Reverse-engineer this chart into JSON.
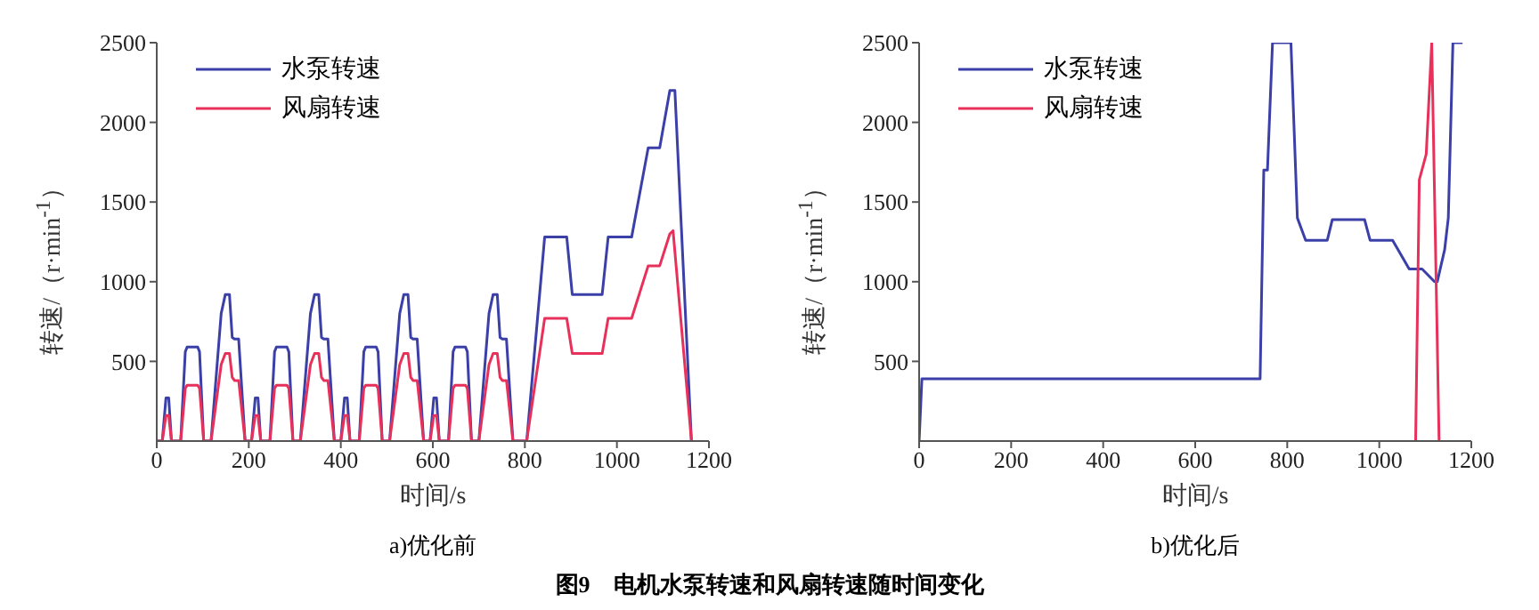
{
  "chart_data": [
    {
      "type": "line",
      "title": "a)优化前",
      "xlabel": "时间/s",
      "ylabel": "转速/（r·min$^{-1}$）",
      "xlim": [
        0,
        1200
      ],
      "xticks": [
        0,
        200,
        400,
        600,
        800,
        1000,
        1200
      ],
      "ylim": [
        0,
        2500
      ],
      "yticks": [
        500,
        1000,
        1500,
        2000,
        2500
      ],
      "grid": false,
      "legend": "top left",
      "marker": "none",
      "line_style": "solid",
      "annotations": [
        "图9　电机水泵转速和风扇转速随时间变化"
      ],
      "series": [
        {
          "name": "水泵转速",
          "color": "#3b3fa8",
          "x": [
            0,
            12,
            20,
            26,
            32,
            52,
            62,
            66,
            89,
            93,
            102,
            118,
            140,
            149,
            158,
            164,
            169,
            178,
            192,
            206,
            214,
            220,
            226,
            246,
            256,
            260,
            283,
            287,
            296,
            312,
            334,
            343,
            352,
            358,
            363,
            372,
            386,
            400,
            408,
            414,
            420,
            440,
            450,
            454,
            477,
            481,
            490,
            506,
            528,
            537,
            546,
            552,
            557,
            566,
            580,
            594,
            602,
            608,
            614,
            634,
            644,
            648,
            671,
            675,
            684,
            700,
            722,
            731,
            740,
            746,
            751,
            760,
            774,
            804,
            843,
            891,
            903,
            968,
            981,
            1032,
            1068,
            1093,
            1115,
            1126,
            1162
          ],
          "values": [
            0,
            0,
            270,
            270,
            0,
            0,
            560,
            590,
            590,
            560,
            0,
            0,
            800,
            920,
            920,
            650,
            640,
            640,
            0,
            0,
            270,
            270,
            0,
            0,
            560,
            590,
            590,
            560,
            0,
            0,
            800,
            920,
            920,
            650,
            640,
            640,
            0,
            0,
            270,
            270,
            0,
            0,
            560,
            590,
            590,
            560,
            0,
            0,
            800,
            920,
            920,
            650,
            640,
            640,
            0,
            0,
            270,
            270,
            0,
            0,
            560,
            590,
            590,
            560,
            0,
            0,
            800,
            920,
            920,
            650,
            640,
            640,
            0,
            0,
            1280,
            1280,
            920,
            920,
            1280,
            1280,
            1840,
            1840,
            2200,
            2200,
            0
          ]
        },
        {
          "name": "风扇转速",
          "color": "#e8315a",
          "x": [
            0,
            12,
            20,
            26,
            32,
            52,
            62,
            66,
            89,
            93,
            102,
            118,
            140,
            149,
            158,
            164,
            169,
            178,
            192,
            206,
            214,
            220,
            226,
            246,
            256,
            260,
            283,
            287,
            296,
            312,
            334,
            343,
            352,
            358,
            363,
            372,
            386,
            400,
            408,
            414,
            420,
            440,
            450,
            454,
            477,
            481,
            490,
            506,
            528,
            537,
            546,
            552,
            557,
            566,
            580,
            594,
            602,
            608,
            614,
            634,
            644,
            648,
            671,
            675,
            684,
            700,
            722,
            731,
            740,
            746,
            751,
            760,
            774,
            804,
            843,
            891,
            903,
            968,
            981,
            1032,
            1068,
            1093,
            1115,
            1122,
            1162
          ],
          "values": [
            0,
            0,
            160,
            160,
            0,
            0,
            330,
            350,
            350,
            330,
            0,
            0,
            480,
            550,
            550,
            400,
            380,
            380,
            0,
            0,
            160,
            160,
            0,
            0,
            330,
            350,
            350,
            330,
            0,
            0,
            480,
            550,
            550,
            400,
            380,
            380,
            0,
            0,
            160,
            160,
            0,
            0,
            330,
            350,
            350,
            330,
            0,
            0,
            480,
            550,
            550,
            400,
            380,
            380,
            0,
            0,
            160,
            160,
            0,
            0,
            330,
            350,
            350,
            330,
            0,
            0,
            480,
            550,
            550,
            400,
            380,
            380,
            0,
            0,
            770,
            770,
            550,
            550,
            770,
            770,
            1100,
            1100,
            1300,
            1320,
            0
          ]
        }
      ]
    },
    {
      "type": "line",
      "title": "b)优化后",
      "xlabel": "时间/s",
      "ylabel": "转速/（r·min$^{-1}$）",
      "xlim": [
        0,
        1200
      ],
      "xticks": [
        0,
        200,
        400,
        600,
        800,
        1000,
        1200
      ],
      "ylim": [
        0,
        2500
      ],
      "yticks": [
        500,
        1000,
        1500,
        2000,
        2500
      ],
      "grid": false,
      "legend": "top left",
      "marker": "none",
      "line_style": "solid",
      "series": [
        {
          "name": "水泵转速",
          "color": "#3b3fa8",
          "x": [
            0,
            6,
            741,
            749,
            757,
            768,
            808,
            822,
            840,
            887,
            898,
            968,
            980,
            1029,
            1065,
            1093,
            1120,
            1126,
            1142,
            1150,
            1160,
            1181
          ],
          "values": [
            0,
            390,
            390,
            1700,
            1700,
            2500,
            2500,
            1400,
            1260,
            1260,
            1390,
            1390,
            1260,
            1260,
            1080,
            1080,
            1000,
            1000,
            1200,
            1400,
            2500,
            2500
          ]
        },
        {
          "name": "风扇转速",
          "color": "#e8315a",
          "x": [
            1079,
            1087,
            1102,
            1114,
            1130
          ],
          "values": [
            0,
            1640,
            1800,
            2500,
            0
          ]
        }
      ]
    }
  ]
}
